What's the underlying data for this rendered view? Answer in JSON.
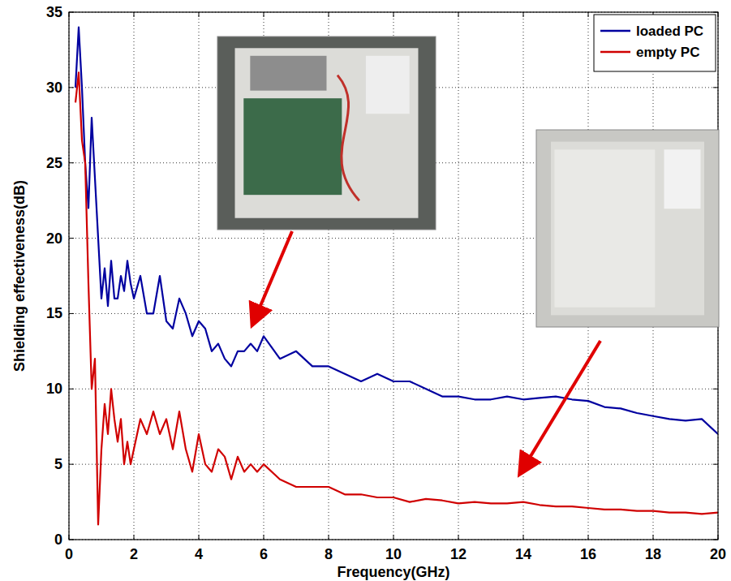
{
  "chart_data": {
    "type": "line",
    "xlabel": "Frequency(GHz)",
    "ylabel": "Shielding effectiveness(dB)",
    "x": [
      0.2,
      0.3,
      0.4,
      0.5,
      0.6,
      0.7,
      0.8,
      0.9,
      1.0,
      1.1,
      1.2,
      1.3,
      1.4,
      1.5,
      1.6,
      1.7,
      1.8,
      1.9,
      2.0,
      2.2,
      2.4,
      2.6,
      2.8,
      3.0,
      3.2,
      3.4,
      3.6,
      3.8,
      4.0,
      4.2,
      4.4,
      4.6,
      4.8,
      5.0,
      5.2,
      5.4,
      5.6,
      5.8,
      6.0,
      6.5,
      7.0,
      7.5,
      8.0,
      8.5,
      9.0,
      9.5,
      10.0,
      10.5,
      11.0,
      11.5,
      12.0,
      12.5,
      13.0,
      13.5,
      14.0,
      14.5,
      15.0,
      15.5,
      16.0,
      16.5,
      17.0,
      17.5,
      18.0,
      18.5,
      19.0,
      19.5,
      20.0
    ],
    "series": [
      {
        "name": "loaded PC",
        "color": "#0000a0",
        "values": [
          30,
          34,
          30,
          25,
          22,
          28,
          24,
          20,
          16,
          18,
          15.5,
          18.5,
          16,
          16,
          17.5,
          16.5,
          18.5,
          17,
          16,
          17.5,
          15,
          15,
          17.5,
          14.5,
          14,
          16,
          15,
          13.5,
          14.5,
          14,
          12.5,
          13,
          12,
          11.5,
          12.5,
          12.5,
          13,
          12.5,
          13.5,
          12,
          12.5,
          11.5,
          11.5,
          11,
          10.5,
          11,
          10.5,
          10.5,
          10,
          9.5,
          9.5,
          9.3,
          9.3,
          9.5,
          9.3,
          9.4,
          9.5,
          9.3,
          9.2,
          8.8,
          8.7,
          8.4,
          8.2,
          8,
          7.9,
          8,
          7
        ]
      },
      {
        "name": "empty PC",
        "color": "#d00000",
        "values": [
          29,
          31,
          26.5,
          25,
          17,
          10,
          12,
          1,
          6,
          9,
          7,
          10,
          8,
          6.5,
          8,
          5,
          6.5,
          5,
          6,
          8,
          7,
          8.5,
          7,
          8,
          6,
          8.5,
          6,
          4.5,
          7,
          5,
          4.5,
          6,
          5.5,
          4,
          5.5,
          4.5,
          5,
          4.5,
          5,
          4,
          3.5,
          3.5,
          3.5,
          3,
          3,
          2.8,
          2.8,
          2.5,
          2.7,
          2.6,
          2.4,
          2.5,
          2.4,
          2.4,
          2.5,
          2.3,
          2.2,
          2.2,
          2.1,
          2,
          2,
          1.9,
          1.9,
          1.8,
          1.8,
          1.7,
          1.8
        ]
      }
    ],
    "xlim": [
      0,
      20
    ],
    "xticks": [
      0,
      2,
      4,
      6,
      8,
      10,
      12,
      14,
      16,
      18,
      20
    ],
    "ylim": [
      0,
      35
    ],
    "yticks": [
      0,
      5,
      10,
      15,
      20,
      25,
      30,
      35
    ],
    "grid": true,
    "legend": "upper right"
  }
}
